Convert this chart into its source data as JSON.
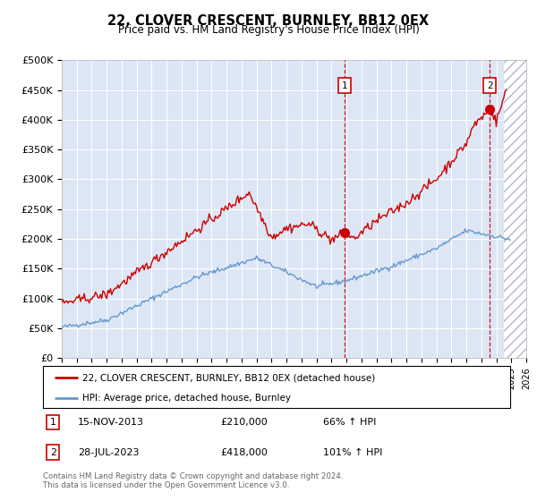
{
  "title": "22, CLOVER CRESCENT, BURNLEY, BB12 0EX",
  "subtitle": "Price paid vs. HM Land Registry's House Price Index (HPI)",
  "ylim": [
    0,
    500000
  ],
  "yticks": [
    0,
    50000,
    100000,
    150000,
    200000,
    250000,
    300000,
    350000,
    400000,
    450000,
    500000
  ],
  "ytick_labels": [
    "£0",
    "£50K",
    "£100K",
    "£150K",
    "£200K",
    "£250K",
    "£300K",
    "£350K",
    "£400K",
    "£450K",
    "£500K"
  ],
  "plot_bg_color": "#dce6f5",
  "grid_color": "#ffffff",
  "hpi_line_color": "#6699cc",
  "price_line_color": "#cc0000",
  "transaction1_x": 2013.87,
  "transaction1_price": 210000,
  "transaction2_x": 2023.57,
  "transaction2_price": 418000,
  "legend_label_price": "22, CLOVER CRESCENT, BURNLEY, BB12 0EX (detached house)",
  "legend_label_hpi": "HPI: Average price, detached house, Burnley",
  "footnote": "Contains HM Land Registry data © Crown copyright and database right 2024.\nThis data is licensed under the Open Government Licence v3.0.",
  "xmin": 1995,
  "xmax": 2026,
  "future_xmin": 2024.5
}
